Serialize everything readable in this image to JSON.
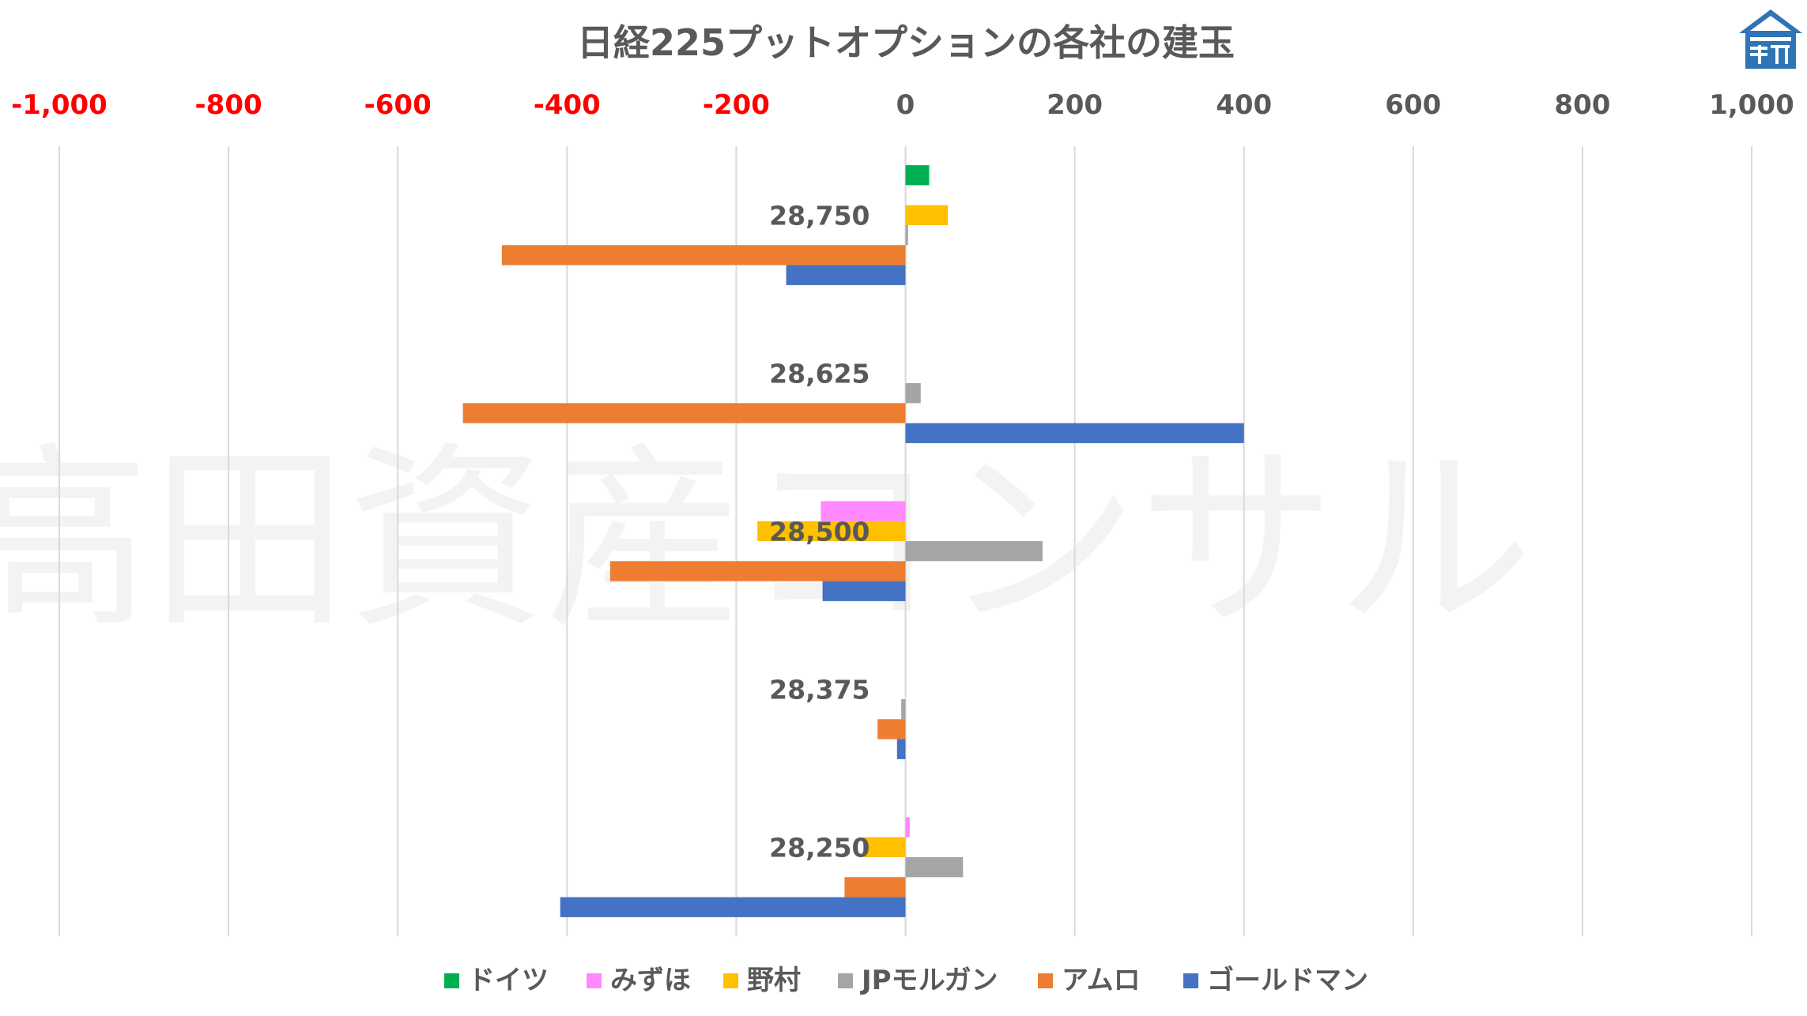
{
  "chart_data": {
    "type": "bar",
    "orientation": "horizontal",
    "title": "日経225プットオプションの各社の建玉",
    "watermark": "高田資産コンサル",
    "xlim": [
      -1000,
      1000
    ],
    "x_ticks": [
      {
        "value": -1000,
        "label": "-1,000"
      },
      {
        "value": -800,
        "label": "-800"
      },
      {
        "value": -600,
        "label": "-600"
      },
      {
        "value": -400,
        "label": "-400"
      },
      {
        "value": -200,
        "label": "-200"
      },
      {
        "value": 0,
        "label": "0"
      },
      {
        "value": 200,
        "label": "200"
      },
      {
        "value": 400,
        "label": "400"
      },
      {
        "value": 600,
        "label": "600"
      },
      {
        "value": 800,
        "label": "800"
      },
      {
        "value": 1000,
        "label": "1,000"
      }
    ],
    "negative_tick_color": "#ff0000",
    "positive_tick_color": "#595959",
    "grid": true,
    "legend_position": "bottom",
    "categories": [
      "28,750",
      "28,625",
      "28,500",
      "28,375",
      "28,250"
    ],
    "series": [
      {
        "name": "ドイツ",
        "color": "#00b050",
        "values": [
          28,
          0,
          0,
          0,
          0
        ]
      },
      {
        "name": "みずほ",
        "color": "#ff88ff",
        "values": [
          0,
          0,
          -100,
          0,
          5
        ]
      },
      {
        "name": "野村",
        "color": "#ffc000",
        "values": [
          50,
          0,
          -175,
          0,
          -50
        ]
      },
      {
        "name": "JPモルガン",
        "color": "#a5a5a5",
        "values": [
          3,
          18,
          162,
          -5,
          68
        ]
      },
      {
        "name": "アムロ",
        "color": "#ed7d31",
        "values": [
          -477,
          -523,
          -349,
          -33,
          -72
        ]
      },
      {
        "name": "ゴールドマン",
        "color": "#4472c4",
        "values": [
          -141,
          400,
          -98,
          -10,
          -408
        ]
      }
    ]
  }
}
